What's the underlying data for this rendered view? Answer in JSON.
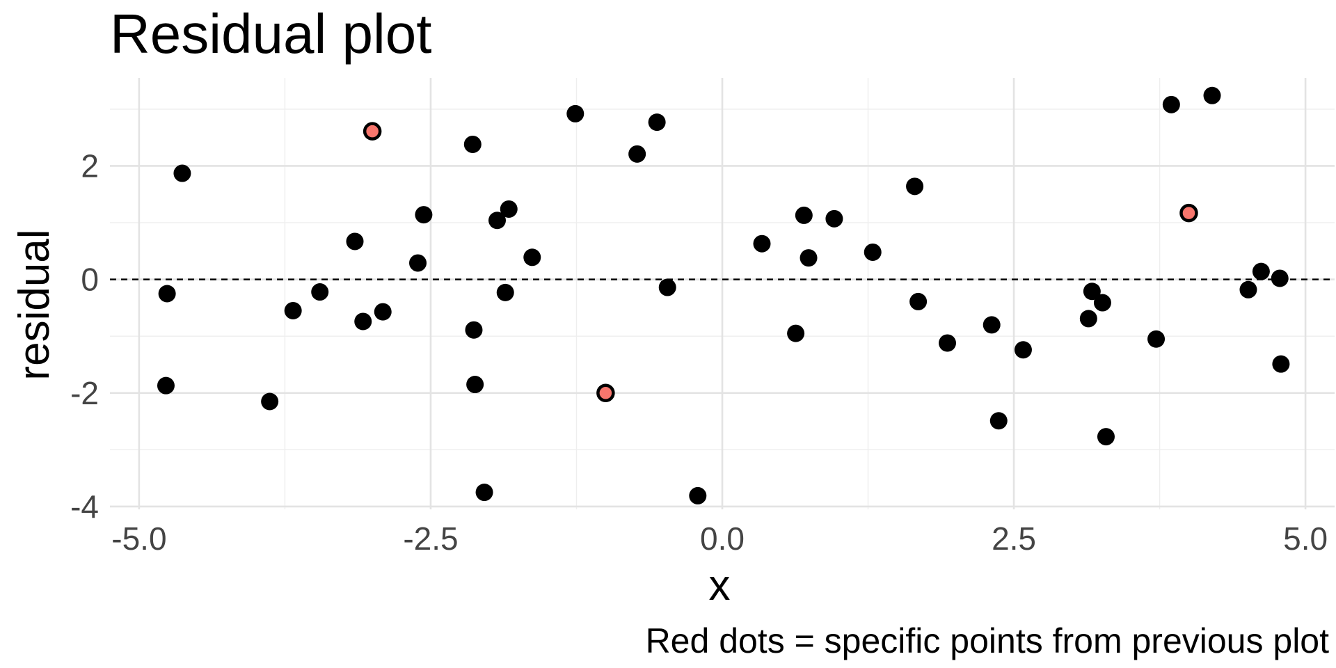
{
  "chart_data": {
    "type": "scatter",
    "title": "Residual plot",
    "xlabel": "x",
    "ylabel": "residual",
    "caption": "Red dots = specific points from previous plot",
    "xlim": [
      -5.25,
      5.25
    ],
    "ylim": [
      -4.05,
      3.55
    ],
    "x_ticks": [
      -5.0,
      -2.5,
      0.0,
      2.5,
      5.0
    ],
    "x_tick_labels": [
      "-5.0",
      "-2.5",
      "0.0",
      "2.5",
      "5.0"
    ],
    "y_ticks": [
      -4,
      -2,
      0,
      2
    ],
    "y_tick_labels": [
      "-4",
      "-2",
      "0",
      "2"
    ],
    "grid": true,
    "reference_line": {
      "y": 0,
      "style": "dashed"
    },
    "colors": {
      "point": "#000000",
      "highlight": "#f8766d"
    },
    "series": [
      {
        "type": "scatter",
        "points": [
          {
            "x": -4.63,
            "y": 1.87
          },
          {
            "x": -4.76,
            "y": -0.25
          },
          {
            "x": -4.77,
            "y": -1.87
          },
          {
            "x": -3.88,
            "y": -2.15
          },
          {
            "x": -3.68,
            "y": -0.55
          },
          {
            "x": -3.45,
            "y": -0.22
          },
          {
            "x": -3.15,
            "y": 0.67
          },
          {
            "x": -3.08,
            "y": -0.74
          },
          {
            "x": -2.91,
            "y": -0.57
          },
          {
            "x": -2.56,
            "y": 1.14
          },
          {
            "x": -2.61,
            "y": 0.29
          },
          {
            "x": -2.14,
            "y": 2.38
          },
          {
            "x": -2.13,
            "y": -0.89
          },
          {
            "x": -2.12,
            "y": -1.85
          },
          {
            "x": -2.04,
            "y": -3.75
          },
          {
            "x": -1.93,
            "y": 1.04
          },
          {
            "x": -1.83,
            "y": 1.24
          },
          {
            "x": -1.86,
            "y": -0.23
          },
          {
            "x": -1.63,
            "y": 0.39
          },
          {
            "x": -1.26,
            "y": 2.92
          },
          {
            "x": -0.73,
            "y": 2.21
          },
          {
            "x": -0.56,
            "y": 2.77
          },
          {
            "x": -0.47,
            "y": -0.14
          },
          {
            "x": -0.21,
            "y": -3.81
          },
          {
            "x": 0.34,
            "y": 0.63
          },
          {
            "x": 0.63,
            "y": -0.95
          },
          {
            "x": 0.7,
            "y": 1.13
          },
          {
            "x": 0.74,
            "y": 0.38
          },
          {
            "x": 0.96,
            "y": 1.07
          },
          {
            "x": 1.29,
            "y": 0.48
          },
          {
            "x": 1.65,
            "y": 1.64
          },
          {
            "x": 1.68,
            "y": -0.39
          },
          {
            "x": 1.93,
            "y": -1.12
          },
          {
            "x": 2.31,
            "y": -0.8
          },
          {
            "x": 2.37,
            "y": -2.49
          },
          {
            "x": 2.58,
            "y": -1.24
          },
          {
            "x": 3.14,
            "y": -0.69
          },
          {
            "x": 3.17,
            "y": -0.21
          },
          {
            "x": 3.26,
            "y": -0.41
          },
          {
            "x": 3.29,
            "y": -2.77
          },
          {
            "x": 3.72,
            "y": -1.05
          },
          {
            "x": 3.85,
            "y": 3.08
          },
          {
            "x": 4.2,
            "y": 3.24
          },
          {
            "x": 4.51,
            "y": -0.18
          },
          {
            "x": 4.62,
            "y": 0.14
          },
          {
            "x": 4.78,
            "y": 0.02
          },
          {
            "x": 4.79,
            "y": -1.49
          }
        ]
      },
      {
        "type": "scatter",
        "highlight": true,
        "points": [
          {
            "x": -3.0,
            "y": 2.61
          },
          {
            "x": -1.0,
            "y": -2.0
          },
          {
            "x": 4.0,
            "y": 1.17
          }
        ]
      }
    ]
  }
}
